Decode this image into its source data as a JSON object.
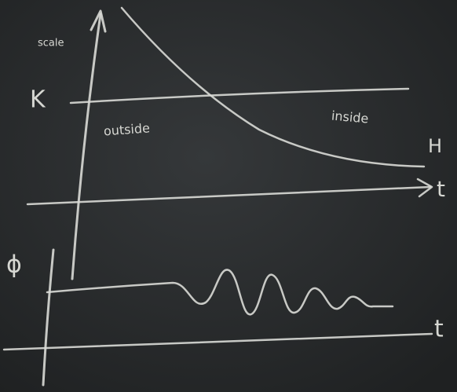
{
  "labels": {
    "scale": "scale",
    "k": "K",
    "outside": "outside",
    "inside": "inside",
    "h": "H",
    "t_upper": "t",
    "t_lower": "t",
    "phi": "ϕ"
  }
}
